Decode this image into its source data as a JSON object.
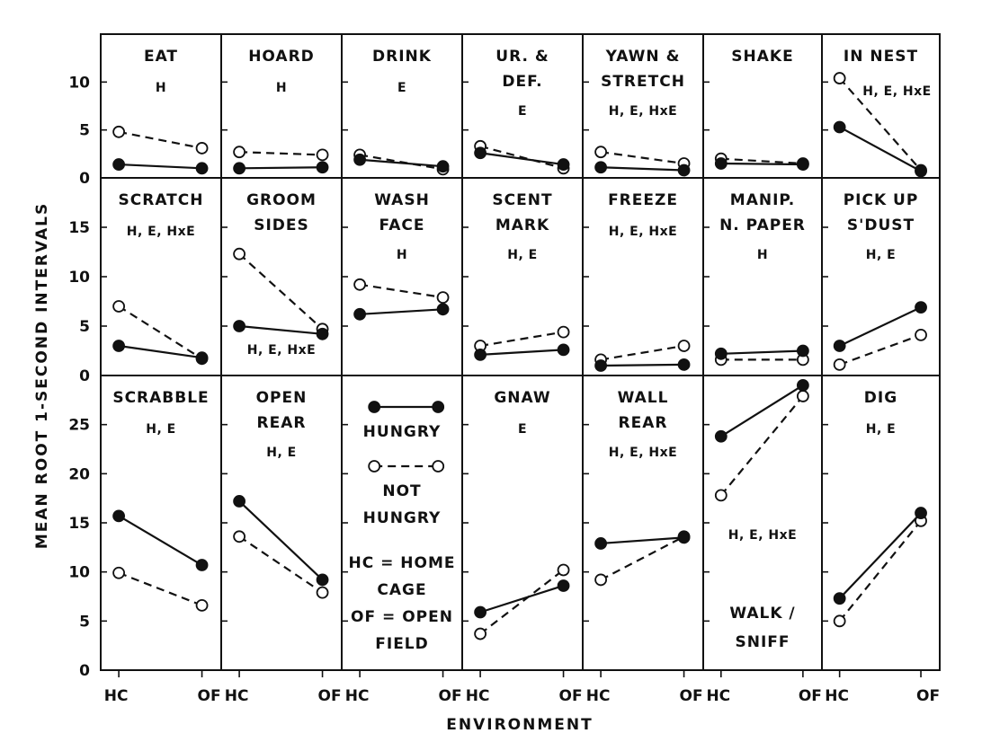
{
  "chart_data": {
    "type": "line",
    "xlabel": "ENVIRONMENT",
    "ylabel": "MEAN ROOT 1-SECOND INTERVALS",
    "categories": [
      "HC",
      "OF"
    ],
    "legend": {
      "hungry_label": "HUNGRY",
      "not_hungry_label": [
        "NOT",
        "HUNGRY"
      ],
      "notes": [
        "HC = HOME",
        "CAGE",
        "OF = OPEN",
        "FIELD"
      ]
    },
    "rows": [
      {
        "ylim": [
          0,
          15
        ],
        "yticks": [
          "0",
          "5",
          "10"
        ],
        "tickvals": [
          0,
          5,
          10
        ]
      },
      {
        "ylim": [
          0,
          20
        ],
        "yticks": [
          "0",
          "5",
          "10",
          "15"
        ],
        "tickvals": [
          0,
          5,
          10,
          15
        ]
      },
      {
        "ylim": [
          0,
          30
        ],
        "yticks": [
          "0",
          "5",
          "10",
          "15",
          "20",
          "25"
        ],
        "tickvals": [
          0,
          5,
          10,
          15,
          20,
          25
        ]
      }
    ],
    "panels": [
      {
        "row": 0,
        "col": 0,
        "title": [
          "EAT"
        ],
        "effects": "H",
        "hungry": [
          1.4,
          1.0
        ],
        "not_hungry": [
          4.8,
          3.1
        ]
      },
      {
        "row": 0,
        "col": 1,
        "title": [
          "HOARD"
        ],
        "effects": "H",
        "hungry": [
          1.0,
          1.1
        ],
        "not_hungry": [
          2.7,
          2.4
        ]
      },
      {
        "row": 0,
        "col": 2,
        "title": [
          "DRINK"
        ],
        "effects": "E",
        "hungry": [
          1.9,
          1.2
        ],
        "not_hungry": [
          2.4,
          0.9
        ]
      },
      {
        "row": 0,
        "col": 3,
        "title": [
          "UR. &",
          "DEF."
        ],
        "effects": "E",
        "hungry": [
          2.6,
          1.4
        ],
        "not_hungry": [
          3.3,
          1.0
        ]
      },
      {
        "row": 0,
        "col": 4,
        "title": [
          "YAWN &",
          "STRETCH"
        ],
        "effects": "H, E, HxE",
        "hungry": [
          1.1,
          0.8
        ],
        "not_hungry": [
          2.7,
          1.5
        ]
      },
      {
        "row": 0,
        "col": 5,
        "title": [
          "SHAKE"
        ],
        "effects": "",
        "hungry": [
          1.5,
          1.4
        ],
        "not_hungry": [
          2.0,
          1.5
        ]
      },
      {
        "row": 0,
        "col": 6,
        "title": [
          "IN  NEST"
        ],
        "effects": "H, E, HxE",
        "hungry": [
          5.3,
          0.7
        ],
        "not_hungry": [
          10.4,
          0.8
        ]
      },
      {
        "row": 1,
        "col": 0,
        "title": [
          "SCRATCH"
        ],
        "effects": "H, E, HxE",
        "hungry": [
          3.0,
          1.8
        ],
        "not_hungry": [
          7.0,
          1.7
        ]
      },
      {
        "row": 1,
        "col": 1,
        "title": [
          "GROOM",
          "SIDES"
        ],
        "effects": "H, E, HxE",
        "hungry": [
          5.0,
          4.2
        ],
        "not_hungry": [
          12.3,
          4.7
        ]
      },
      {
        "row": 1,
        "col": 2,
        "title": [
          "WASH",
          "FACE"
        ],
        "effects": "H",
        "hungry": [
          6.2,
          6.7
        ],
        "not_hungry": [
          9.2,
          7.9
        ]
      },
      {
        "row": 1,
        "col": 3,
        "title": [
          "SCENT",
          "MARK"
        ],
        "effects": "H, E",
        "hungry": [
          2.1,
          2.6
        ],
        "not_hungry": [
          3.0,
          4.4
        ]
      },
      {
        "row": 1,
        "col": 4,
        "title": [
          "FREEZE"
        ],
        "effects": "H, E, HxE",
        "hungry": [
          1.0,
          1.1
        ],
        "not_hungry": [
          1.6,
          3.0
        ]
      },
      {
        "row": 1,
        "col": 5,
        "title": [
          "MANIP.",
          "N. PAPER"
        ],
        "effects": "H",
        "hungry": [
          2.2,
          2.5
        ],
        "not_hungry": [
          1.6,
          1.6
        ]
      },
      {
        "row": 1,
        "col": 6,
        "title": [
          "PICK UP",
          "S'DUST"
        ],
        "effects": "H, E",
        "hungry": [
          3.0,
          6.9
        ],
        "not_hungry": [
          1.1,
          4.1
        ]
      },
      {
        "row": 2,
        "col": 0,
        "title": [
          "SCRABBLE"
        ],
        "effects": "H, E",
        "hungry": [
          15.7,
          10.7
        ],
        "not_hungry": [
          9.9,
          6.6
        ]
      },
      {
        "row": 2,
        "col": 1,
        "title": [
          "OPEN",
          "REAR"
        ],
        "effects": "H, E",
        "hungry": [
          17.2,
          9.2
        ],
        "not_hungry": [
          13.6,
          7.9
        ]
      },
      {
        "row": 2,
        "col": 3,
        "title": [
          "GNAW"
        ],
        "effects": "E",
        "hungry": [
          5.9,
          8.6
        ],
        "not_hungry": [
          3.7,
          10.2
        ]
      },
      {
        "row": 2,
        "col": 4,
        "title": [
          "WALL",
          "REAR"
        ],
        "effects": "H, E, HxE",
        "hungry": [
          12.9,
          13.5
        ],
        "not_hungry": [
          9.2,
          13.6
        ]
      },
      {
        "row": 2,
        "col": 5,
        "title": [
          "WALK /",
          "SNIFF"
        ],
        "title_pos": "bottom",
        "effects": "H, E, HxE",
        "hungry": [
          23.8,
          29.0
        ],
        "not_hungry": [
          17.8,
          27.9
        ]
      },
      {
        "row": 2,
        "col": 6,
        "title": [
          "DIG"
        ],
        "effects": "H, E",
        "hungry": [
          7.3,
          16.0
        ],
        "not_hungry": [
          5.0,
          15.2
        ]
      }
    ]
  }
}
